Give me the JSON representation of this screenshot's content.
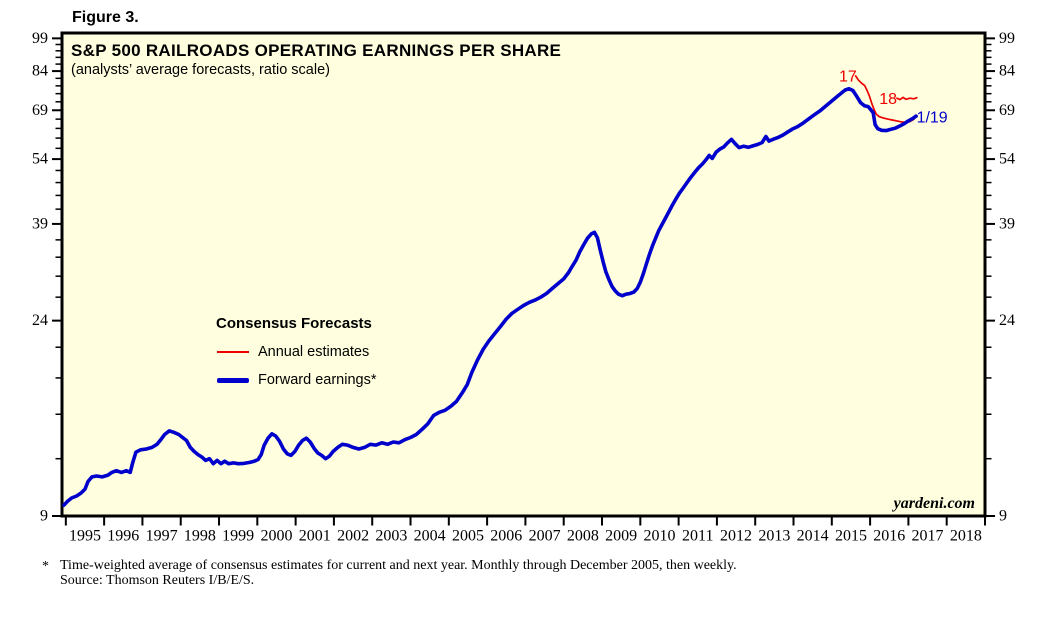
{
  "figure_label": "Figure 3.",
  "footnote": {
    "marker": "*",
    "line1": "Time-weighted average of consensus estimates for current and next year. Monthly through December 2005, then weekly.",
    "line2": "Source: Thomson Reuters I/B/E/S."
  },
  "chart_data": {
    "type": "line",
    "title": "S&P 500 RAILROADS OPERATING EARNINGS PER SHARE",
    "subtitle": "(analysts’ average forecasts, ratio scale)",
    "watermark": "yardeni.com",
    "xlabel": "",
    "ylabel": "",
    "y_scale": "log",
    "grid": false,
    "ylim": [
      9,
      101.7
    ],
    "xlim": [
      1994.9,
      2019.0
    ],
    "y_major_ticks": [
      9,
      24,
      39,
      54,
      69,
      84,
      99
    ],
    "y_minor_tick_step": 3,
    "x_year_labels": [
      "1995",
      "1996",
      "1997",
      "1998",
      "1999",
      "2000",
      "2001",
      "2002",
      "2003",
      "2004",
      "2005",
      "2006",
      "2007",
      "2008",
      "2009",
      "2010",
      "2011",
      "2012",
      "2013",
      "2014",
      "2015",
      "2016",
      "2017",
      "2018"
    ],
    "colors": {
      "plot_bg": "#FFFFE0",
      "frame": "#000000",
      "forward": "#0000CC",
      "estimates": "#EE0000",
      "text": "#000000"
    },
    "legend": {
      "heading": "Consensus Forecasts",
      "position": "inside-left-middle",
      "items": [
        {
          "label": "Annual estimates",
          "color": "#EE0000",
          "thickness": 2
        },
        {
          "label": "Forward earnings*",
          "color": "#0000CC",
          "thickness": 5
        }
      ]
    },
    "annotations": [
      {
        "text": "17",
        "x": 2015.42,
        "y": 81.5,
        "color": "#EE0000"
      },
      {
        "text": "18",
        "x": 2016.47,
        "y": 72.8,
        "color": "#EE0000"
      },
      {
        "text": "1/19",
        "x": 2017.62,
        "y": 66.3,
        "color": "#0000CC"
      }
    ],
    "series": [
      {
        "key": "forward_earnings",
        "name": "Forward earnings*",
        "color": "#0000CC",
        "width": 3.6,
        "points": [
          [
            1994.95,
            9.5
          ],
          [
            1995.05,
            9.7
          ],
          [
            1995.15,
            9.85
          ],
          [
            1995.28,
            9.95
          ],
          [
            1995.4,
            10.1
          ],
          [
            1995.5,
            10.3
          ],
          [
            1995.58,
            10.7
          ],
          [
            1995.68,
            10.95
          ],
          [
            1995.8,
            11.0
          ],
          [
            1995.95,
            10.95
          ],
          [
            1996.1,
            11.05
          ],
          [
            1996.2,
            11.2
          ],
          [
            1996.32,
            11.3
          ],
          [
            1996.45,
            11.2
          ],
          [
            1996.58,
            11.3
          ],
          [
            1996.68,
            11.2
          ],
          [
            1996.75,
            11.8
          ],
          [
            1996.83,
            12.4
          ],
          [
            1996.95,
            12.55
          ],
          [
            1997.1,
            12.6
          ],
          [
            1997.25,
            12.7
          ],
          [
            1997.38,
            12.9
          ],
          [
            1997.48,
            13.2
          ],
          [
            1997.58,
            13.55
          ],
          [
            1997.7,
            13.8
          ],
          [
            1997.82,
            13.7
          ],
          [
            1997.95,
            13.55
          ],
          [
            1998.05,
            13.35
          ],
          [
            1998.15,
            13.15
          ],
          [
            1998.25,
            12.7
          ],
          [
            1998.35,
            12.45
          ],
          [
            1998.45,
            12.25
          ],
          [
            1998.55,
            12.1
          ],
          [
            1998.65,
            11.9
          ],
          [
            1998.75,
            12.0
          ],
          [
            1998.85,
            11.7
          ],
          [
            1998.95,
            11.9
          ],
          [
            1999.05,
            11.7
          ],
          [
            1999.15,
            11.85
          ],
          [
            1999.25,
            11.7
          ],
          [
            1999.38,
            11.75
          ],
          [
            1999.5,
            11.7
          ],
          [
            1999.65,
            11.72
          ],
          [
            1999.8,
            11.78
          ],
          [
            1999.92,
            11.85
          ],
          [
            2000.02,
            11.95
          ],
          [
            2000.1,
            12.25
          ],
          [
            2000.18,
            12.85
          ],
          [
            2000.28,
            13.3
          ],
          [
            2000.38,
            13.6
          ],
          [
            2000.48,
            13.45
          ],
          [
            2000.58,
            13.1
          ],
          [
            2000.68,
            12.6
          ],
          [
            2000.78,
            12.3
          ],
          [
            2000.88,
            12.2
          ],
          [
            2000.98,
            12.45
          ],
          [
            2001.08,
            12.85
          ],
          [
            2001.18,
            13.15
          ],
          [
            2001.28,
            13.3
          ],
          [
            2001.38,
            13.05
          ],
          [
            2001.48,
            12.65
          ],
          [
            2001.58,
            12.35
          ],
          [
            2001.68,
            12.2
          ],
          [
            2001.78,
            12.0
          ],
          [
            2001.88,
            12.15
          ],
          [
            2001.98,
            12.45
          ],
          [
            2002.1,
            12.7
          ],
          [
            2002.22,
            12.9
          ],
          [
            2002.35,
            12.85
          ],
          [
            2002.5,
            12.7
          ],
          [
            2002.65,
            12.6
          ],
          [
            2002.8,
            12.7
          ],
          [
            2002.95,
            12.9
          ],
          [
            2003.1,
            12.85
          ],
          [
            2003.25,
            13.0
          ],
          [
            2003.4,
            12.9
          ],
          [
            2003.55,
            13.05
          ],
          [
            2003.7,
            13.0
          ],
          [
            2003.85,
            13.2
          ],
          [
            2004.0,
            13.35
          ],
          [
            2004.15,
            13.55
          ],
          [
            2004.3,
            13.9
          ],
          [
            2004.45,
            14.3
          ],
          [
            2004.6,
            14.9
          ],
          [
            2004.75,
            15.15
          ],
          [
            2004.9,
            15.3
          ],
          [
            2005.05,
            15.6
          ],
          [
            2005.2,
            16.0
          ],
          [
            2005.35,
            16.7
          ],
          [
            2005.48,
            17.4
          ],
          [
            2005.6,
            18.5
          ],
          [
            2005.75,
            19.7
          ],
          [
            2005.9,
            20.8
          ],
          [
            2006.05,
            21.7
          ],
          [
            2006.2,
            22.5
          ],
          [
            2006.35,
            23.3
          ],
          [
            2006.5,
            24.2
          ],
          [
            2006.65,
            24.9
          ],
          [
            2006.8,
            25.4
          ],
          [
            2006.95,
            25.9
          ],
          [
            2007.1,
            26.3
          ],
          [
            2007.25,
            26.6
          ],
          [
            2007.4,
            27.0
          ],
          [
            2007.55,
            27.5
          ],
          [
            2007.7,
            28.2
          ],
          [
            2007.85,
            28.9
          ],
          [
            2008.0,
            29.6
          ],
          [
            2008.12,
            30.5
          ],
          [
            2008.22,
            31.5
          ],
          [
            2008.32,
            32.5
          ],
          [
            2008.42,
            33.9
          ],
          [
            2008.52,
            35.1
          ],
          [
            2008.62,
            36.3
          ],
          [
            2008.72,
            37.1
          ],
          [
            2008.8,
            37.4
          ],
          [
            2008.88,
            36.4
          ],
          [
            2008.95,
            34.3
          ],
          [
            2009.03,
            32.2
          ],
          [
            2009.1,
            30.7
          ],
          [
            2009.18,
            29.5
          ],
          [
            2009.26,
            28.5
          ],
          [
            2009.34,
            27.9
          ],
          [
            2009.43,
            27.4
          ],
          [
            2009.53,
            27.2
          ],
          [
            2009.63,
            27.4
          ],
          [
            2009.73,
            27.5
          ],
          [
            2009.83,
            27.7
          ],
          [
            2009.92,
            28.2
          ],
          [
            2010.0,
            29.1
          ],
          [
            2010.08,
            30.4
          ],
          [
            2010.16,
            31.9
          ],
          [
            2010.24,
            33.5
          ],
          [
            2010.32,
            35.0
          ],
          [
            2010.4,
            36.3
          ],
          [
            2010.48,
            37.7
          ],
          [
            2010.57,
            38.9
          ],
          [
            2010.66,
            40.2
          ],
          [
            2010.75,
            41.5
          ],
          [
            2010.84,
            42.9
          ],
          [
            2010.93,
            44.2
          ],
          [
            2011.02,
            45.5
          ],
          [
            2011.12,
            46.7
          ],
          [
            2011.22,
            48.0
          ],
          [
            2011.32,
            49.3
          ],
          [
            2011.42,
            50.5
          ],
          [
            2011.52,
            51.7
          ],
          [
            2011.62,
            52.7
          ],
          [
            2011.72,
            53.9
          ],
          [
            2011.8,
            55.0
          ],
          [
            2011.88,
            54.2
          ],
          [
            2011.98,
            55.9
          ],
          [
            2012.08,
            56.8
          ],
          [
            2012.18,
            57.4
          ],
          [
            2012.28,
            58.6
          ],
          [
            2012.38,
            59.6
          ],
          [
            2012.48,
            58.3
          ],
          [
            2012.58,
            57.2
          ],
          [
            2012.7,
            57.6
          ],
          [
            2012.82,
            57.3
          ],
          [
            2012.94,
            57.7
          ],
          [
            2013.06,
            58.1
          ],
          [
            2013.18,
            58.7
          ],
          [
            2013.28,
            60.5
          ],
          [
            2013.36,
            59.1
          ],
          [
            2013.48,
            59.7
          ],
          [
            2013.6,
            60.2
          ],
          [
            2013.72,
            60.9
          ],
          [
            2013.84,
            61.8
          ],
          [
            2013.96,
            62.7
          ],
          [
            2014.1,
            63.5
          ],
          [
            2014.25,
            64.7
          ],
          [
            2014.4,
            66.1
          ],
          [
            2014.55,
            67.5
          ],
          [
            2014.7,
            68.9
          ],
          [
            2014.85,
            70.6
          ],
          [
            2015.0,
            72.3
          ],
          [
            2015.12,
            73.7
          ],
          [
            2015.24,
            75.1
          ],
          [
            2015.35,
            76.4
          ],
          [
            2015.45,
            76.9
          ],
          [
            2015.55,
            76.2
          ],
          [
            2015.65,
            74.0
          ],
          [
            2015.75,
            71.7
          ],
          [
            2015.85,
            70.6
          ],
          [
            2015.95,
            70.3
          ],
          [
            2016.03,
            69.0
          ],
          [
            2016.08,
            68.2
          ],
          [
            2016.13,
            64.2
          ],
          [
            2016.2,
            62.9
          ],
          [
            2016.3,
            62.4
          ],
          [
            2016.42,
            62.3
          ],
          [
            2016.54,
            62.7
          ],
          [
            2016.66,
            63.1
          ],
          [
            2016.78,
            63.8
          ],
          [
            2016.9,
            64.6
          ],
          [
            2017.0,
            65.4
          ],
          [
            2017.1,
            66.1
          ],
          [
            2017.2,
            67.0
          ]
        ]
      },
      {
        "key": "annual_estimates_2017",
        "name": "Annual estimates (2017)",
        "color": "#EE0000",
        "width": 1.7,
        "points": [
          [
            2015.62,
            82.0
          ],
          [
            2015.7,
            80.2
          ],
          [
            2015.78,
            79.0
          ],
          [
            2015.86,
            78.1
          ],
          [
            2015.92,
            76.3
          ],
          [
            2015.98,
            74.2
          ],
          [
            2016.04,
            71.6
          ],
          [
            2016.1,
            69.4
          ],
          [
            2016.16,
            67.7
          ],
          [
            2016.24,
            66.8
          ],
          [
            2016.34,
            66.4
          ],
          [
            2016.46,
            66.0
          ],
          [
            2016.58,
            65.7
          ],
          [
            2016.7,
            65.4
          ],
          [
            2016.82,
            65.1
          ],
          [
            2016.94,
            64.9
          ],
          [
            2017.04,
            65.2
          ],
          [
            2017.15,
            66.0
          ]
        ]
      },
      {
        "key": "annual_estimates_2018",
        "name": "Annual estimates (2018)",
        "color": "#EE0000",
        "width": 1.7,
        "points": [
          [
            2016.7,
            73.3
          ],
          [
            2016.78,
            72.8
          ],
          [
            2016.86,
            73.6
          ],
          [
            2016.94,
            72.9
          ],
          [
            2017.04,
            73.3
          ],
          [
            2017.14,
            73.1
          ],
          [
            2017.22,
            73.5
          ]
        ]
      }
    ]
  }
}
